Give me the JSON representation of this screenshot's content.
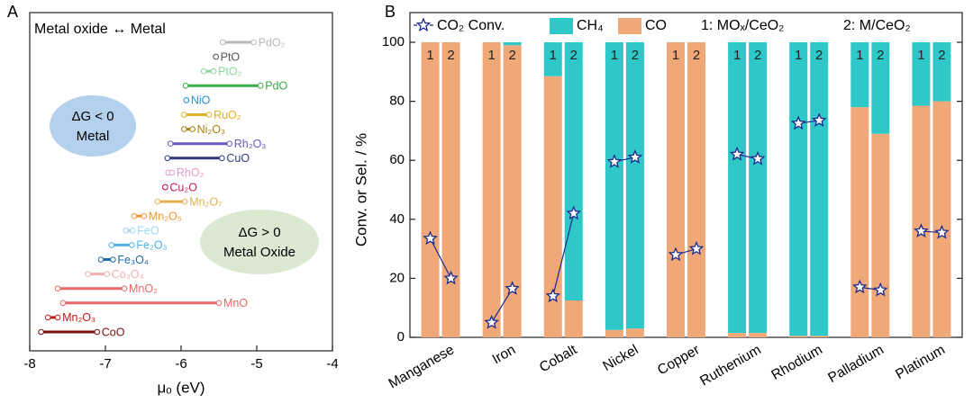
{
  "chart_data": [
    {
      "type": "range",
      "panel_label": "A",
      "title": "Metal oxide ↔ Metal",
      "x_label": "μₒ (eV)",
      "xlim": [
        -8,
        -4
      ],
      "xticks": [
        -8,
        -7,
        -6,
        -5,
        -4
      ],
      "annotations": [
        {
          "lines": [
            "ΔG < 0",
            "Metal"
          ],
          "color": "#b3d1ec"
        },
        {
          "lines": [
            "ΔG > 0",
            "Metal Oxide"
          ],
          "color": "#dbe8d2"
        }
      ],
      "rows": [
        {
          "label": "PdO₂",
          "color": "#b8b8b8",
          "values": [
            -5.45,
            -5.04
          ]
        },
        {
          "label": "PtO",
          "color": "#555555",
          "values": [
            -5.54,
            -5.54
          ]
        },
        {
          "label": "PtO₂",
          "color": "#8fd39c",
          "values": [
            -5.7,
            -5.57
          ]
        },
        {
          "label": "PdO",
          "color": "#3aae48",
          "values": [
            -5.94,
            -4.95
          ]
        },
        {
          "label": "NiO",
          "color": "#2a8fd8",
          "values": [
            -5.93,
            -5.93
          ]
        },
        {
          "label": "RuO₂",
          "color": "#e0b028",
          "values": [
            -5.96,
            -5.63
          ]
        },
        {
          "label": "Ni₂O₃",
          "color": "#a8800e",
          "values": [
            -5.96,
            -5.85
          ]
        },
        {
          "label": "Rh₂O₃",
          "color": "#6858c0",
          "values": [
            -6.14,
            -5.36
          ]
        },
        {
          "label": "CuO",
          "color": "#2e3a7a",
          "values": [
            -6.18,
            -5.46
          ]
        },
        {
          "label": "RhO₂",
          "color": "#e49ac2",
          "values": [
            -6.17,
            -6.12
          ]
        },
        {
          "label": "Cu₂O",
          "color": "#c2185b",
          "values": [
            -6.21,
            -6.21
          ]
        },
        {
          "label": "Mn₂O₇",
          "color": "#e0b050",
          "values": [
            -6.31,
            -5.95
          ]
        },
        {
          "label": "Mn₂O₅",
          "color": "#f0962e",
          "values": [
            -6.62,
            -6.49
          ]
        },
        {
          "label": "FeO",
          "color": "#9fd4f0",
          "values": [
            -6.73,
            -6.64
          ]
        },
        {
          "label": "Fe₂O₃",
          "color": "#4fb2e6",
          "values": [
            -6.92,
            -6.65
          ]
        },
        {
          "label": "Fe₃O₄",
          "color": "#1f6aa8",
          "values": [
            -7.06,
            -6.9
          ]
        },
        {
          "label": "Co₃O₄",
          "color": "#f0b0b0",
          "values": [
            -7.23,
            -6.98
          ]
        },
        {
          "label": "MnO₂",
          "color": "#e86868",
          "values": [
            -7.63,
            -6.75
          ]
        },
        {
          "label": "MnO",
          "color": "#e86868",
          "values": [
            -7.56,
            -5.5
          ]
        },
        {
          "label": "Mn₂O₃",
          "color": "#c01818",
          "values": [
            -7.76,
            -7.63
          ]
        },
        {
          "label": "CoO",
          "color": "#7a0d0d",
          "values": [
            -7.85,
            -7.11
          ]
        }
      ]
    },
    {
      "type": "stacked_bar",
      "panel_label": "B",
      "y_label": "Conv. or Sel. / %",
      "ylim": [
        0,
        100
      ],
      "yticks": [
        0,
        20,
        40,
        60,
        80,
        100
      ],
      "categories": [
        "Manganese",
        "Iron",
        "Cobalt",
        "Nickel",
        "Copper",
        "Ruthenium",
        "Rhodium",
        "Palladium",
        "Platinum"
      ],
      "samples": [
        {
          "label": "1",
          "legend": "1: MOₓ/CeO₂"
        },
        {
          "label": "2",
          "legend": "2: M/CeO₂"
        }
      ],
      "series": [
        {
          "name": "CO",
          "type": "bar",
          "color": "#f0a878",
          "values": [
            [
              100,
              100
            ],
            [
              100,
              99
            ],
            [
              88.5,
              12.5
            ],
            [
              2.5,
              3
            ],
            [
              100,
              100
            ],
            [
              1.5,
              1.5
            ],
            [
              0.5,
              0.5
            ],
            [
              78,
              69
            ],
            [
              78.5,
              80
            ]
          ]
        },
        {
          "name": "CH₄",
          "type": "bar",
          "color": "#2ec8c8",
          "values": [
            [
              0,
              0
            ],
            [
              0,
              1
            ],
            [
              11.5,
              87.5
            ],
            [
              97.5,
              97
            ],
            [
              0,
              0
            ],
            [
              98.5,
              98.5
            ],
            [
              99.5,
              99.5
            ],
            [
              22,
              31
            ],
            [
              21.5,
              20
            ]
          ]
        },
        {
          "name": "CO₂ Conv.",
          "type": "line",
          "color": "#1c2a8c",
          "values": [
            [
              33.5,
              20
            ],
            [
              5,
              16.5
            ],
            [
              14,
              42
            ],
            [
              59.5,
              61
            ],
            [
              28,
              30
            ],
            [
              62,
              60.5
            ],
            [
              72.5,
              73.5
            ],
            [
              17,
              16
            ],
            [
              36,
              35.5
            ]
          ]
        }
      ]
    }
  ]
}
